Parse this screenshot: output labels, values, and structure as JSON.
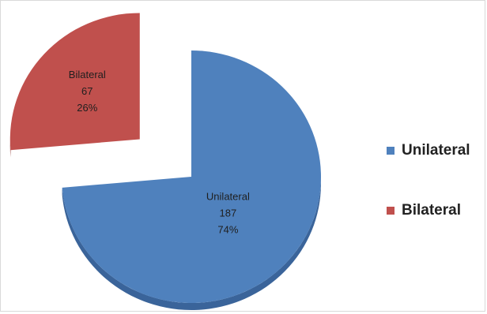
{
  "chart_data": {
    "type": "pie",
    "slices": [
      {
        "name": "Unilateral",
        "value": 187,
        "percent": "74%",
        "color": "#4f81bd",
        "side_color": "#3a649a",
        "exploded": false
      },
      {
        "name": "Bilateral",
        "value": 67,
        "percent": "26%",
        "color": "#c0504d",
        "side_color": "#8e3431",
        "exploded": true
      }
    ],
    "legend": {
      "placement": "right"
    },
    "style": "3d-exploded"
  }
}
